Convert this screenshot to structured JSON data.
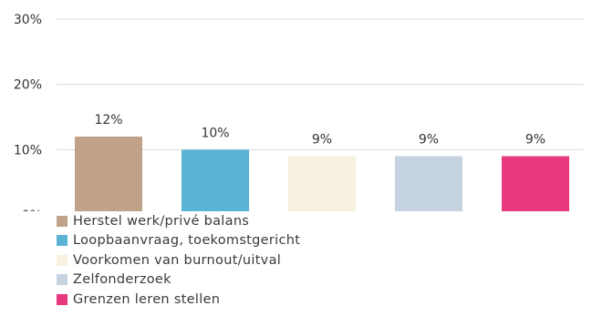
{
  "chart_data": {
    "type": "bar",
    "categories": [
      "Herstel werk/privé balans",
      "Loopbaanvraag, toekomstgericht",
      "Voorkomen van burnout/uitval",
      "Zelfonderzoek",
      "Grenzen leren stellen"
    ],
    "values": [
      12,
      10,
      9,
      9,
      9
    ],
    "value_labels": [
      "12%",
      "10%",
      "9%",
      "9%",
      "9%"
    ],
    "colors": [
      "#bfa287",
      "#5ab3d4",
      "#f8f1e1",
      "#c5d3e0",
      "#e8397f"
    ],
    "yticks": [
      0,
      10,
      20,
      30
    ],
    "ytick_labels": [
      "0%",
      "10%",
      "20%",
      "30%"
    ],
    "ylim": [
      0,
      30
    ],
    "grid": true,
    "legend_position": "bottom-left",
    "title": "",
    "xlabel": "",
    "ylabel": ""
  }
}
